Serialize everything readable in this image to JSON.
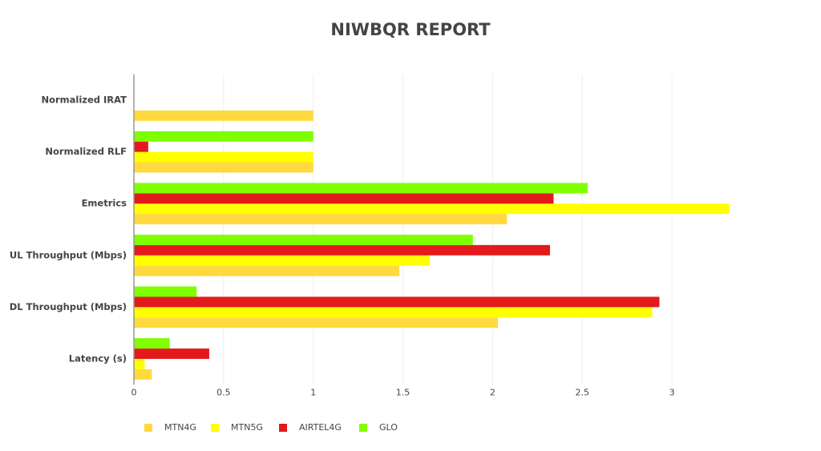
{
  "chart_data": {
    "type": "hbar",
    "title": "NIWBQR REPORT",
    "categories": [
      "Latency (s)",
      "DL Throughput (Mbps)",
      "UL Throughput (Mbps)",
      "Emetrics",
      "Normalized RLF",
      "Normalized IRAT"
    ],
    "series": [
      {
        "name": "MTN4G",
        "color": "#ffd93d",
        "values": [
          0.1,
          2.03,
          1.48,
          2.08,
          1,
          1
        ]
      },
      {
        "name": "MTN5G",
        "color": "#ffff00",
        "values": [
          0.06,
          2.89,
          1.65,
          3.32,
          1,
          null
        ]
      },
      {
        "name": "AIRTEL4G",
        "color": "#e31a1c",
        "values": [
          0.42,
          2.93,
          2.32,
          2.34,
          0.08,
          null
        ]
      },
      {
        "name": "GLO",
        "color": "#7fff00",
        "values": [
          0.2,
          0.35,
          1.89,
          2.53,
          1,
          null
        ]
      }
    ],
    "xlim": [
      0,
      3.45
    ],
    "xticks": [
      0,
      0.5,
      1,
      1.5,
      2,
      2.5,
      3
    ],
    "grid": true,
    "legend": "bottom"
  }
}
